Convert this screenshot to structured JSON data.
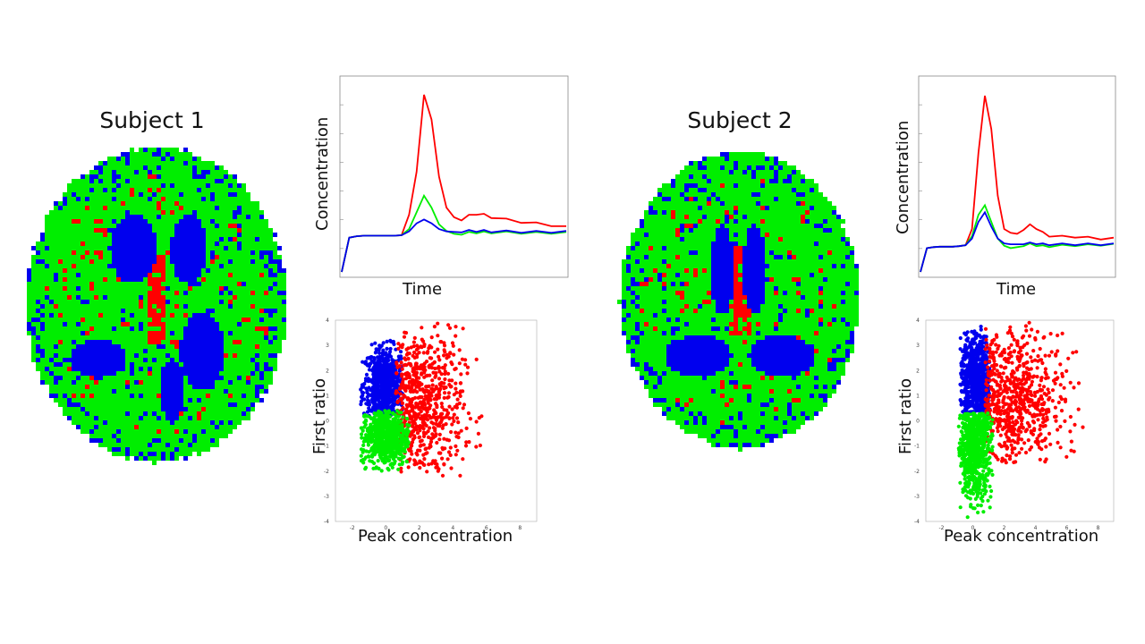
{
  "subject1": {
    "title": "Subject 1",
    "time_curve_xlabel": "Time",
    "time_curve_ylabel": "Concentration",
    "scatter_xlabel": "Peak concentration",
    "scatter_ylabel": "First ratio"
  },
  "subject2": {
    "title": "Subject 2",
    "time_curve_xlabel": "Time",
    "time_curve_ylabel": "Concentration",
    "scatter_xlabel": "Peak concentration",
    "scatter_ylabel": "First ratio"
  },
  "colors": {
    "red": "#ff0000",
    "green": "#00ee00",
    "blue": "#0000ee"
  },
  "chart_data": [
    {
      "type": "line",
      "panel": "subject1-time-curve",
      "xlabel": "Time",
      "ylabel": "Concentration",
      "x": [
        0,
        2,
        4,
        6,
        8,
        10,
        12,
        14,
        16,
        18,
        20,
        22,
        24,
        26,
        28,
        30,
        32,
        34,
        36,
        38,
        40,
        44,
        48,
        52,
        56,
        60
      ],
      "series": [
        {
          "color": "red",
          "values": [
            0.0,
            0.72,
            0.75,
            0.76,
            0.76,
            0.76,
            0.76,
            0.76,
            0.77,
            1.2,
            2.1,
            3.72,
            3.2,
            2.0,
            1.35,
            1.15,
            1.1,
            1.18,
            1.22,
            1.2,
            1.15,
            1.1,
            1.05,
            1.02,
            0.98,
            0.94
          ]
        },
        {
          "color": "green",
          "values": [
            0.0,
            0.72,
            0.75,
            0.76,
            0.76,
            0.76,
            0.76,
            0.76,
            0.77,
            0.9,
            1.25,
            1.6,
            1.35,
            1.0,
            0.86,
            0.8,
            0.8,
            0.82,
            0.83,
            0.83,
            0.83,
            0.83,
            0.82,
            0.82,
            0.82,
            0.82
          ]
        },
        {
          "color": "blue",
          "values": [
            0.0,
            0.72,
            0.75,
            0.76,
            0.76,
            0.76,
            0.76,
            0.76,
            0.77,
            0.85,
            1.02,
            1.1,
            1.02,
            0.9,
            0.85,
            0.84,
            0.85,
            0.86,
            0.86,
            0.86,
            0.85,
            0.85,
            0.84,
            0.84,
            0.84,
            0.84
          ]
        }
      ]
    },
    {
      "type": "line",
      "panel": "subject2-time-curve",
      "xlabel": "Time",
      "ylabel": "Concentration",
      "x": [
        0,
        2,
        4,
        6,
        8,
        10,
        12,
        14,
        16,
        18,
        20,
        22,
        24,
        26,
        28,
        30,
        32,
        34,
        36,
        38,
        40,
        44,
        48,
        52,
        56,
        60
      ],
      "series": [
        {
          "color": "red",
          "values": [
            0.0,
            0.5,
            0.52,
            0.53,
            0.53,
            0.53,
            0.54,
            0.56,
            0.9,
            2.5,
            3.7,
            3.0,
            1.6,
            0.9,
            0.82,
            0.8,
            0.9,
            0.98,
            0.92,
            0.82,
            0.76,
            0.74,
            0.74,
            0.72,
            0.7,
            0.7
          ]
        },
        {
          "color": "green",
          "values": [
            0.0,
            0.5,
            0.52,
            0.53,
            0.53,
            0.53,
            0.54,
            0.56,
            0.75,
            1.2,
            1.4,
            1.05,
            0.7,
            0.55,
            0.5,
            0.52,
            0.56,
            0.58,
            0.56,
            0.54,
            0.54,
            0.55,
            0.56,
            0.56,
            0.57,
            0.57
          ]
        },
        {
          "color": "blue",
          "values": [
            0.0,
            0.5,
            0.52,
            0.53,
            0.53,
            0.53,
            0.54,
            0.56,
            0.7,
            1.05,
            1.25,
            0.95,
            0.7,
            0.6,
            0.58,
            0.58,
            0.6,
            0.6,
            0.6,
            0.58,
            0.58,
            0.58,
            0.58,
            0.58,
            0.58,
            0.58
          ]
        }
      ]
    },
    {
      "type": "scatter",
      "panel": "subject1-scatter",
      "xlabel": "Peak concentration",
      "ylabel": "First ratio",
      "xlim": [
        -3,
        9
      ],
      "ylim": [
        -4,
        4
      ],
      "x_ticks": [
        -2,
        0,
        2,
        4,
        6,
        8
      ],
      "y_ticks": [
        4,
        3,
        2,
        1,
        0,
        -1,
        -2,
        -3,
        -4
      ],
      "clusters": [
        {
          "color": "blue",
          "x_range": [
            -1.5,
            1.0
          ],
          "y_range": [
            0.2,
            3.2
          ],
          "count": 700,
          "center": [
            -0.1,
            1.4
          ]
        },
        {
          "color": "red",
          "x_range": [
            0.6,
            5.8
          ],
          "y_range": [
            -2.2,
            3.9
          ],
          "count": 650,
          "center": [
            2.0,
            0.6
          ]
        },
        {
          "color": "green",
          "x_range": [
            -1.5,
            1.4
          ],
          "y_range": [
            -2.0,
            0.4
          ],
          "count": 650,
          "center": [
            0.0,
            -0.6
          ]
        }
      ]
    },
    {
      "type": "scatter",
      "panel": "subject2-scatter",
      "xlabel": "Peak concentration",
      "ylabel": "First ratio",
      "xlim": [
        -3,
        9
      ],
      "ylim": [
        -4,
        4
      ],
      "x_ticks": [
        -2,
        0,
        2,
        4,
        6,
        8
      ],
      "y_ticks": [
        4,
        3,
        2,
        1,
        0,
        -1,
        -2,
        -3,
        -4
      ],
      "clusters": [
        {
          "color": "blue",
          "x_range": [
            -0.8,
            1.2
          ],
          "y_range": [
            0.2,
            3.8
          ],
          "count": 700,
          "center": [
            0.2,
            1.6
          ]
        },
        {
          "color": "red",
          "x_range": [
            0.8,
            7.6
          ],
          "y_range": [
            -1.7,
            3.9
          ],
          "count": 650,
          "center": [
            2.4,
            0.8
          ]
        },
        {
          "color": "green",
          "x_range": [
            -0.9,
            1.3
          ],
          "y_range": [
            -3.9,
            0.3
          ],
          "count": 700,
          "center": [
            0.1,
            -0.9
          ]
        }
      ]
    },
    {
      "type": "heatmap",
      "panel": "subject1-brain-map",
      "description_colors": [
        "green",
        "blue",
        "red"
      ]
    },
    {
      "type": "heatmap",
      "panel": "subject2-brain-map",
      "description_colors": [
        "green",
        "blue",
        "red"
      ]
    }
  ]
}
